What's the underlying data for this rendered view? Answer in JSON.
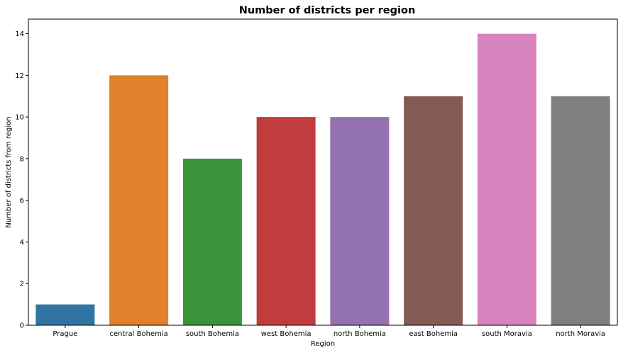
{
  "chart_data": {
    "type": "bar",
    "title": "Number of districts per region",
    "xlabel": "Region",
    "ylabel": "Number of districts from region",
    "categories": [
      "Prague",
      "central Bohemia",
      "south Bohemia",
      "west Bohemia",
      "north Bohemia",
      "east Bohemia",
      "south Moravia",
      "north Moravia"
    ],
    "values": [
      1,
      12,
      8,
      10,
      10,
      11,
      14,
      11
    ],
    "colors": [
      "#3274a1",
      "#e1812c",
      "#3a923a",
      "#c03d3e",
      "#9372b2",
      "#845b53",
      "#d684bd",
      "#7f7f7f"
    ],
    "ylim": [
      0,
      14.7
    ],
    "yticks": [
      0,
      2,
      4,
      6,
      8,
      10,
      12,
      14
    ],
    "ytick_labels": [
      "0",
      "2",
      "4",
      "6",
      "8",
      "10",
      "12",
      "14"
    ],
    "grid": false,
    "legend": "none"
  }
}
